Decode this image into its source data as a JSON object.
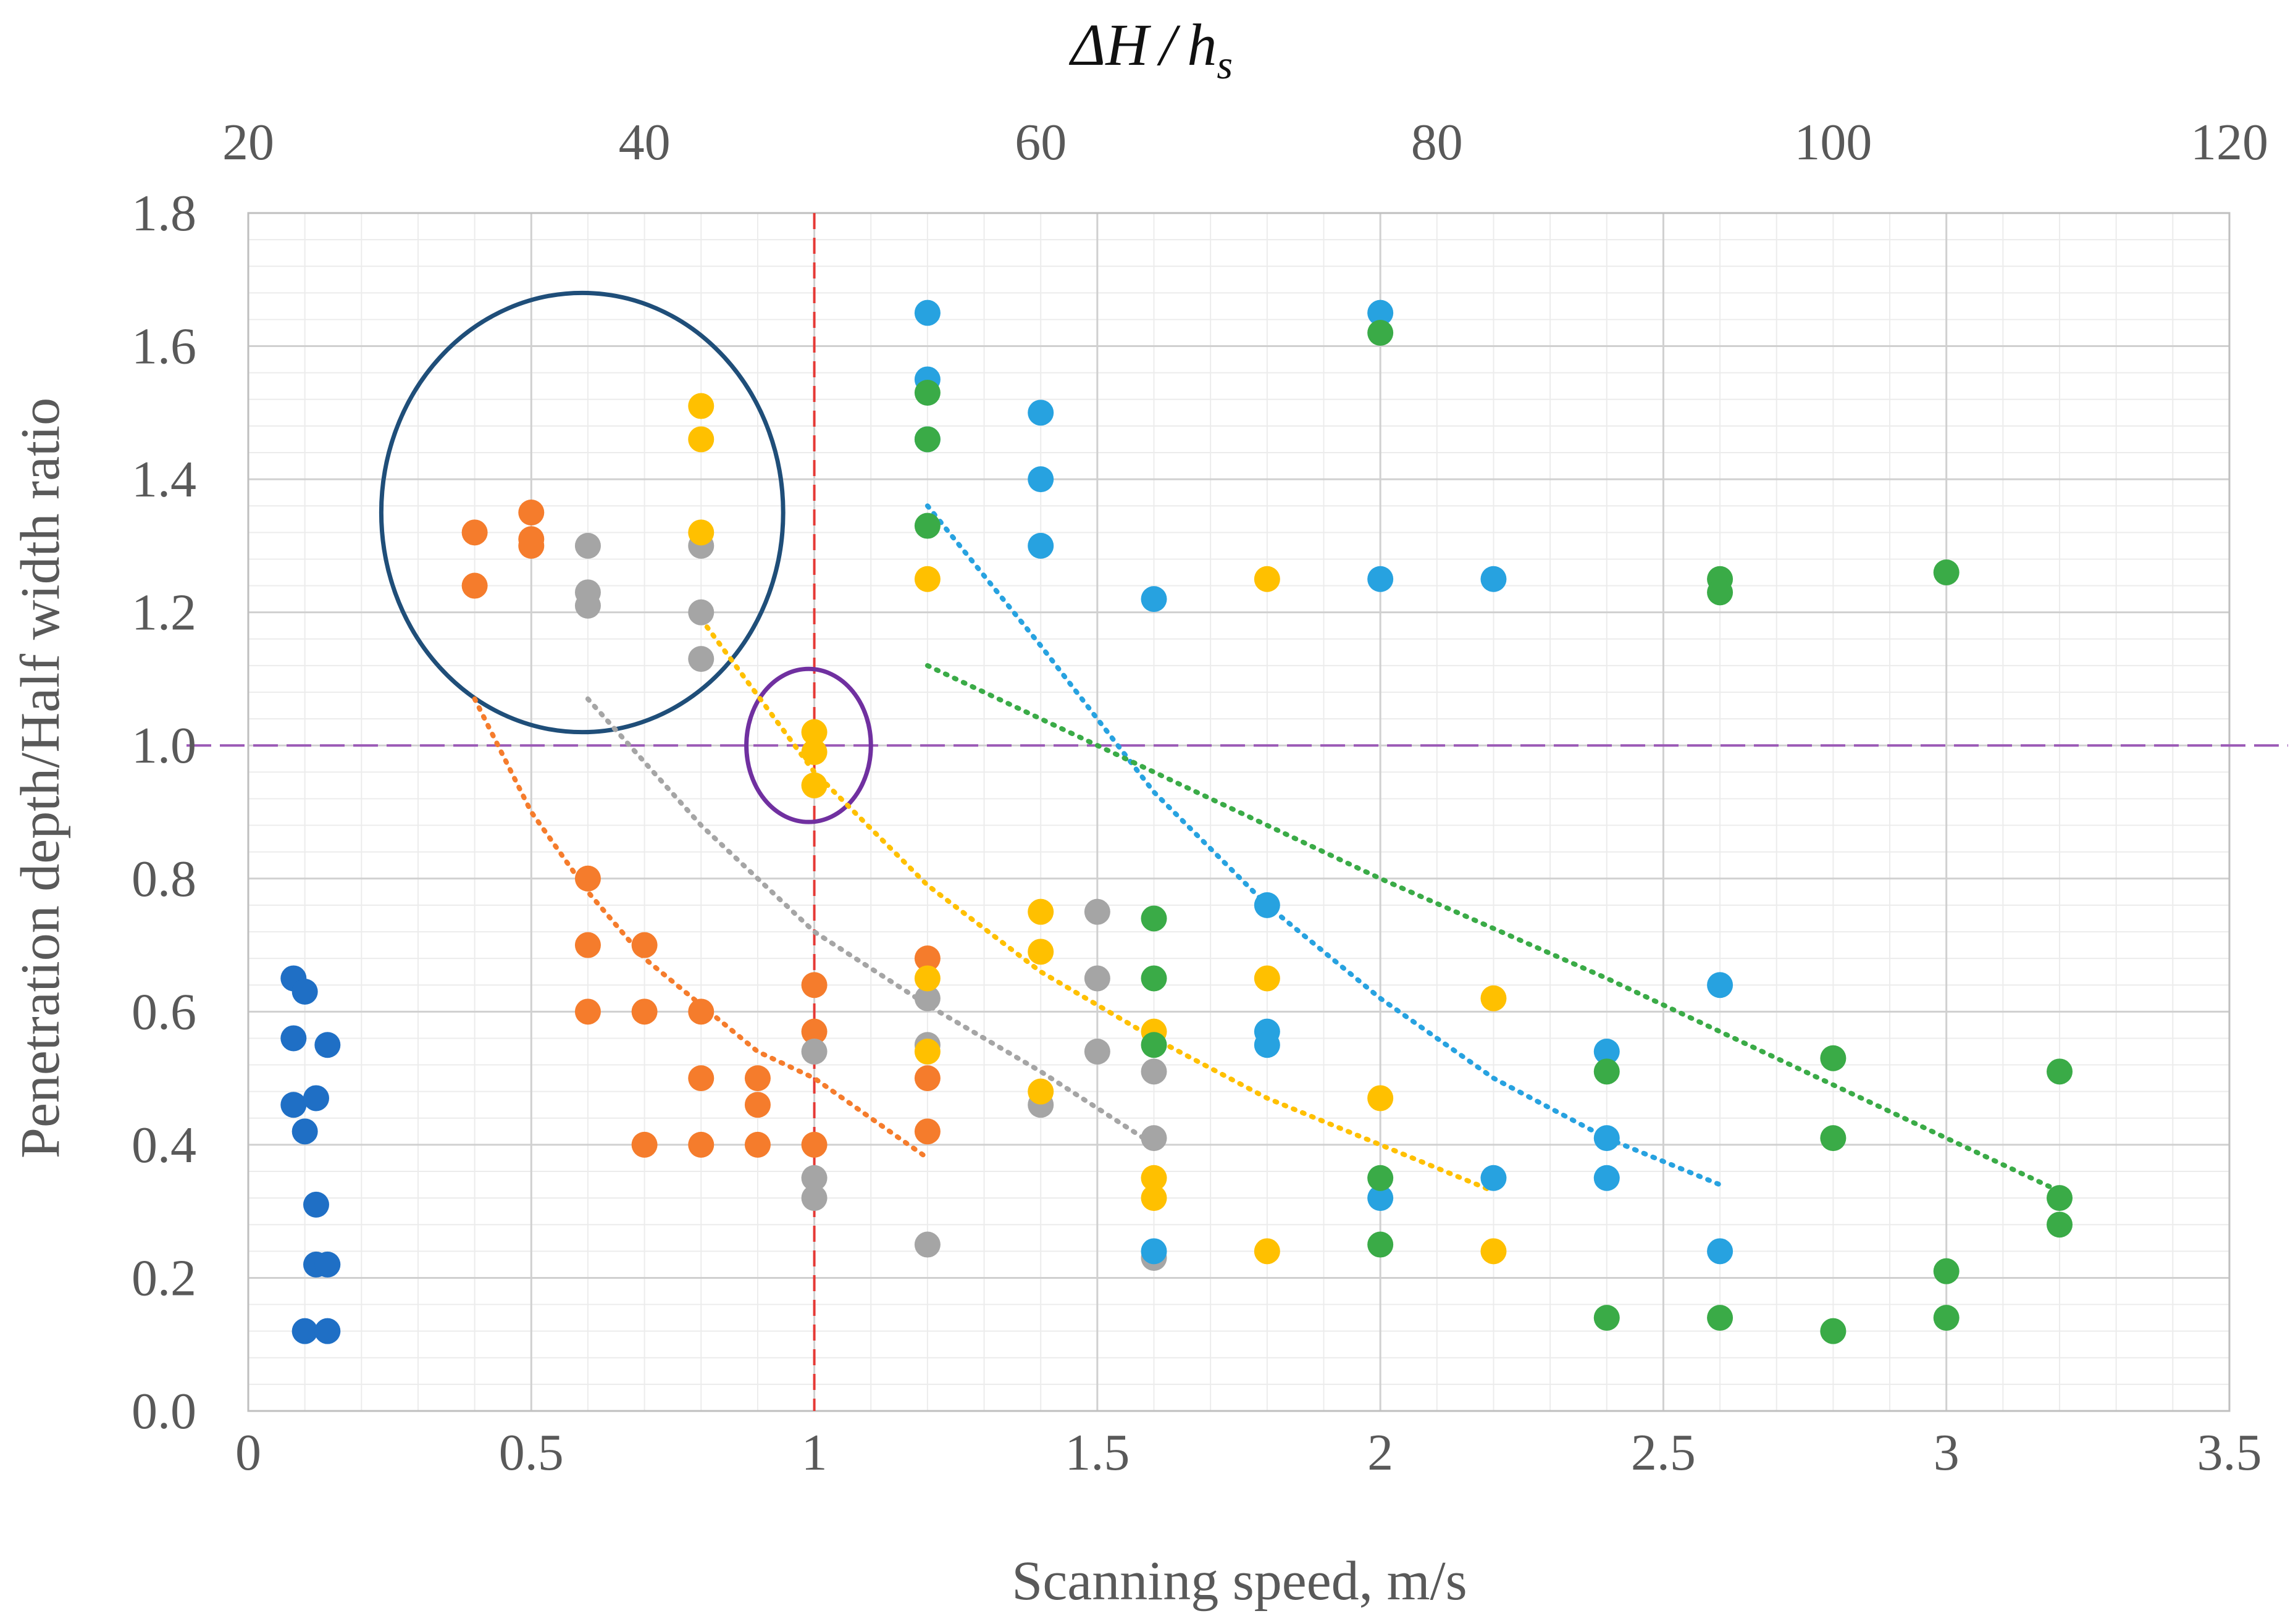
{
  "chart_data": {
    "type": "scatter",
    "xlabel": "Scanning speed, m/s",
    "ylabel": "Penetration depth/Half width ratio",
    "top_xlabel": "ΔH/h_s",
    "top_xlabel_parts": [
      "ΔH",
      "/",
      "h",
      "s"
    ],
    "xlim": [
      0,
      3.5
    ],
    "ylim": [
      0,
      1.8
    ],
    "top_xlim": [
      20,
      120
    ],
    "x_ticks": [
      0,
      0.5,
      1,
      1.5,
      2,
      2.5,
      3,
      3.5
    ],
    "x_tick_labels": [
      "0",
      "0.5",
      "1",
      "1.5",
      "2",
      "2.5",
      "3",
      "3.5"
    ],
    "y_ticks": [
      0,
      0.2,
      0.4,
      0.6,
      0.8,
      1.0,
      1.2,
      1.4,
      1.6,
      1.8
    ],
    "y_tick_labels": [
      "0.0",
      "0.2",
      "0.4",
      "0.6",
      "0.8",
      "1.0",
      "1.2",
      "1.4",
      "1.6",
      "1.8"
    ],
    "top_ticks": [
      20,
      40,
      60,
      80,
      100,
      120
    ],
    "top_tick_labels": [
      "20",
      "40",
      "60",
      "80",
      "100",
      "120"
    ],
    "grid": true,
    "minor_grid": true,
    "series": [
      {
        "name": "blue",
        "color": "#1f6fc5",
        "points": [
          [
            0.08,
            0.65
          ],
          [
            0.1,
            0.63
          ],
          [
            0.08,
            0.56
          ],
          [
            0.14,
            0.55
          ],
          [
            0.08,
            0.46
          ],
          [
            0.12,
            0.47
          ],
          [
            0.1,
            0.42
          ],
          [
            0.12,
            0.31
          ],
          [
            0.12,
            0.22
          ],
          [
            0.14,
            0.22
          ],
          [
            0.1,
            0.12
          ],
          [
            0.14,
            0.12
          ]
        ]
      },
      {
        "name": "orange",
        "color": "#f57c2c",
        "points": [
          [
            0.4,
            1.32
          ],
          [
            0.5,
            1.35
          ],
          [
            0.5,
            1.31
          ],
          [
            0.5,
            1.3
          ],
          [
            0.4,
            1.24
          ],
          [
            0.6,
            0.8
          ],
          [
            0.6,
            0.7
          ],
          [
            0.7,
            0.7
          ],
          [
            0.6,
            0.6
          ],
          [
            0.7,
            0.6
          ],
          [
            0.8,
            0.6
          ],
          [
            0.8,
            0.5
          ],
          [
            0.9,
            0.5
          ],
          [
            0.9,
            0.46
          ],
          [
            0.7,
            0.4
          ],
          [
            0.8,
            0.4
          ],
          [
            0.9,
            0.4
          ],
          [
            1.0,
            0.64
          ],
          [
            1.0,
            0.57
          ],
          [
            1.0,
            0.4
          ],
          [
            1.2,
            0.68
          ],
          [
            1.2,
            0.5
          ],
          [
            1.2,
            0.42
          ]
        ]
      },
      {
        "name": "gray",
        "color": "#a5a5a5",
        "points": [
          [
            0.6,
            1.3
          ],
          [
            0.8,
            1.3
          ],
          [
            0.6,
            1.23
          ],
          [
            0.6,
            1.21
          ],
          [
            0.8,
            1.2
          ],
          [
            0.8,
            1.13
          ],
          [
            1.0,
            0.54
          ],
          [
            1.0,
            0.35
          ],
          [
            1.0,
            0.32
          ],
          [
            1.2,
            0.62
          ],
          [
            1.2,
            0.55
          ],
          [
            1.2,
            0.25
          ],
          [
            1.4,
            0.46
          ],
          [
            1.5,
            0.75
          ],
          [
            1.5,
            0.65
          ],
          [
            1.5,
            0.54
          ],
          [
            1.6,
            0.51
          ],
          [
            1.6,
            0.41
          ],
          [
            1.6,
            0.23
          ]
        ]
      },
      {
        "name": "yellow",
        "color": "#ffc000",
        "points": [
          [
            0.8,
            1.51
          ],
          [
            0.8,
            1.46
          ],
          [
            0.8,
            1.32
          ],
          [
            1.0,
            1.02
          ],
          [
            1.0,
            0.99
          ],
          [
            1.0,
            0.94
          ],
          [
            1.2,
            1.25
          ],
          [
            1.2,
            0.65
          ],
          [
            1.2,
            0.54
          ],
          [
            1.4,
            0.75
          ],
          [
            1.4,
            0.69
          ],
          [
            1.4,
            0.48
          ],
          [
            1.6,
            0.57
          ],
          [
            1.6,
            0.35
          ],
          [
            1.6,
            0.32
          ],
          [
            1.8,
            1.25
          ],
          [
            1.8,
            0.65
          ],
          [
            1.8,
            0.24
          ],
          [
            2.0,
            0.47
          ],
          [
            2.2,
            0.62
          ],
          [
            2.2,
            0.24
          ]
        ]
      },
      {
        "name": "lightblue",
        "color": "#27a2e0",
        "points": [
          [
            1.2,
            1.65
          ],
          [
            1.2,
            1.55
          ],
          [
            1.2,
            1.46
          ],
          [
            1.4,
            1.5
          ],
          [
            1.4,
            1.4
          ],
          [
            1.4,
            1.3
          ],
          [
            1.6,
            1.22
          ],
          [
            1.6,
            0.24
          ],
          [
            1.8,
            0.76
          ],
          [
            1.8,
            0.57
          ],
          [
            1.8,
            0.55
          ],
          [
            2.0,
            1.65
          ],
          [
            2.0,
            1.25
          ],
          [
            2.0,
            0.32
          ],
          [
            2.2,
            1.25
          ],
          [
            2.2,
            0.35
          ],
          [
            2.4,
            0.54
          ],
          [
            2.4,
            0.41
          ],
          [
            2.4,
            0.35
          ],
          [
            2.6,
            0.64
          ],
          [
            2.6,
            0.24
          ]
        ]
      },
      {
        "name": "green",
        "color": "#3aab47",
        "points": [
          [
            1.2,
            1.53
          ],
          [
            1.2,
            1.46
          ],
          [
            1.2,
            1.33
          ],
          [
            1.6,
            0.74
          ],
          [
            1.6,
            0.65
          ],
          [
            1.6,
            0.55
          ],
          [
            2.0,
            1.62
          ],
          [
            2.0,
            0.35
          ],
          [
            2.0,
            0.25
          ],
          [
            2.4,
            0.51
          ],
          [
            2.4,
            0.14
          ],
          [
            2.6,
            1.25
          ],
          [
            2.6,
            1.23
          ],
          [
            2.6,
            0.14
          ],
          [
            2.8,
            0.53
          ],
          [
            2.8,
            0.41
          ],
          [
            2.8,
            0.12
          ],
          [
            3.0,
            1.26
          ],
          [
            3.0,
            0.21
          ],
          [
            3.0,
            0.14
          ],
          [
            3.2,
            0.51
          ],
          [
            3.2,
            0.32
          ],
          [
            3.2,
            0.28
          ]
        ]
      }
    ],
    "trendlines": [
      {
        "series": "orange",
        "color": "#f57c2c",
        "points": [
          [
            0.4,
            1.07
          ],
          [
            0.5,
            0.9
          ],
          [
            0.6,
            0.78
          ],
          [
            0.7,
            0.68
          ],
          [
            0.8,
            0.61
          ],
          [
            0.9,
            0.54
          ],
          [
            1.0,
            0.5
          ],
          [
            1.1,
            0.44
          ],
          [
            1.2,
            0.38
          ]
        ]
      },
      {
        "series": "gray",
        "color": "#a5a5a5",
        "points": [
          [
            0.6,
            1.07
          ],
          [
            0.8,
            0.88
          ],
          [
            1.0,
            0.72
          ],
          [
            1.2,
            0.61
          ],
          [
            1.4,
            0.51
          ],
          [
            1.6,
            0.4
          ]
        ]
      },
      {
        "series": "yellow",
        "color": "#ffc000",
        "points": [
          [
            0.8,
            1.19
          ],
          [
            1.0,
            0.96
          ],
          [
            1.2,
            0.79
          ],
          [
            1.4,
            0.66
          ],
          [
            1.6,
            0.56
          ],
          [
            1.8,
            0.47
          ],
          [
            2.0,
            0.4
          ],
          [
            2.2,
            0.33
          ]
        ]
      },
      {
        "series": "lightblue",
        "color": "#27a2e0",
        "points": [
          [
            1.2,
            1.36
          ],
          [
            1.4,
            1.15
          ],
          [
            1.6,
            0.93
          ],
          [
            1.8,
            0.76
          ],
          [
            2.0,
            0.62
          ],
          [
            2.2,
            0.5
          ],
          [
            2.4,
            0.41
          ],
          [
            2.6,
            0.34
          ]
        ]
      },
      {
        "series": "green",
        "color": "#3aab47",
        "points": [
          [
            1.2,
            1.12
          ],
          [
            1.6,
            0.96
          ],
          [
            2.0,
            0.8
          ],
          [
            2.4,
            0.65
          ],
          [
            2.8,
            0.49
          ],
          [
            3.2,
            0.33
          ]
        ]
      }
    ],
    "reference_lines": [
      {
        "orientation": "vertical",
        "x": 1.0,
        "color": "#e53935",
        "style": "dashed"
      },
      {
        "orientation": "horizontal",
        "y": 1.0,
        "color": "#9b59b6",
        "style": "dashed"
      }
    ],
    "annotations": [
      {
        "type": "circle",
        "center": [
          0.59,
          1.35
        ],
        "radius_x_data": 0.355,
        "radius_y_data": 0.33,
        "color": "#1f4e79"
      },
      {
        "type": "ellipse",
        "center": [
          0.99,
          1.0
        ],
        "radius_x_data": 0.11,
        "radius_y_data": 0.115,
        "color": "#7030a0"
      }
    ]
  }
}
